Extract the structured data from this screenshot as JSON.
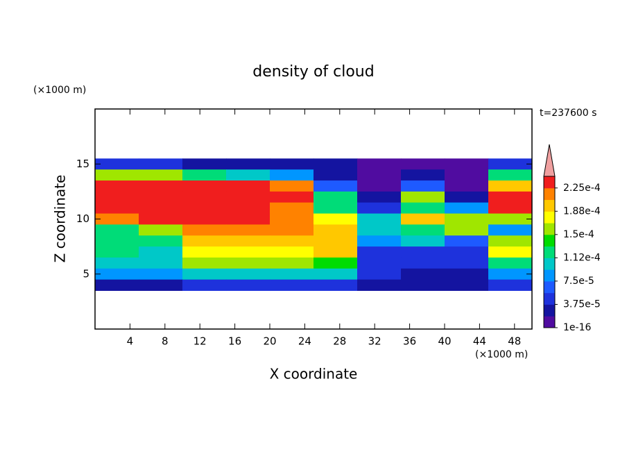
{
  "chart_data": {
    "type": "contour",
    "title": "density of cloud",
    "x_label": "X coordinate",
    "y_label": "Z coordinate",
    "x_unit": "(×1000 m)",
    "y_unit": "(×1000 m)",
    "annotation": "t=237600 s",
    "xlim": [
      0,
      50
    ],
    "ylim": [
      0,
      20
    ],
    "xticks": [
      4,
      8,
      12,
      16,
      20,
      24,
      28,
      32,
      36,
      40,
      44,
      48
    ],
    "yticks": [
      5,
      10,
      15
    ],
    "x_edges": [
      0,
      5,
      10,
      15,
      20,
      25,
      30,
      35,
      40,
      45,
      50
    ],
    "z_edges": [
      15.5,
      14.5,
      13.5,
      12.5,
      11.5,
      10.5,
      9.5,
      8.5,
      7.5,
      6.5,
      5.5,
      4.5,
      3.5
    ],
    "values": [
      [
        5e-05,
        5e-05,
        3e-05,
        3e-05,
        3e-05,
        2e-05,
        1e-05,
        1e-05,
        1e-05,
        5e-05
      ],
      [
        0.00015,
        0.00015,
        0.00012,
        0.0001,
        8e-05,
        3e-05,
        1e-05,
        3e-05,
        1e-05,
        0.00012
      ],
      [
        0.00023,
        0.00023,
        0.00023,
        0.00023,
        0.00022,
        6e-05,
        1e-05,
        6e-05,
        1e-05,
        0.0002
      ],
      [
        0.00023,
        0.00023,
        0.00023,
        0.00023,
        0.00023,
        0.00012,
        2e-05,
        0.00015,
        2e-05,
        0.00023
      ],
      [
        0.00023,
        0.00023,
        0.00023,
        0.00023,
        0.00022,
        0.00012,
        4e-05,
        0.00012,
        8e-05,
        0.00024
      ],
      [
        0.00022,
        0.00023,
        0.00023,
        0.00023,
        0.00022,
        0.00018,
        0.0001,
        0.0002,
        0.00015,
        0.00015
      ],
      [
        0.00012,
        0.00015,
        0.00022,
        0.00022,
        0.00022,
        0.0002,
        0.0001,
        0.00012,
        0.00015,
        9e-05
      ],
      [
        0.00013,
        0.00012,
        0.0002,
        0.0002,
        0.0002,
        0.0002,
        8e-05,
        0.0001,
        6e-05,
        0.00015
      ],
      [
        0.00013,
        0.00011,
        0.00018,
        0.00018,
        0.00018,
        0.00019,
        5e-05,
        5e-05,
        4e-05,
        0.00018
      ],
      [
        0.00011,
        0.0001,
        0.00015,
        0.00015,
        0.00015,
        0.00014,
        5e-05,
        4e-05,
        4e-05,
        0.00013
      ],
      [
        9e-05,
        8e-05,
        0.00011,
        0.00011,
        0.00011,
        0.0001,
        4e-05,
        3e-05,
        3e-05,
        9e-05
      ],
      [
        3e-05,
        3e-05,
        4e-05,
        4e-05,
        4e-05,
        4e-05,
        2e-05,
        2e-05,
        2e-05,
        4e-05
      ]
    ],
    "colorbar": {
      "levels": [
        1e-16,
        1.875e-05,
        3.75e-05,
        5.625e-05,
        7.5e-05,
        9.375e-05,
        0.0001125,
        0.00013125,
        0.00015,
        0.00016875,
        0.0001875,
        0.00020625,
        0.000225,
        0.00024375
      ],
      "colors": [
        "#500ca0",
        "#1414a0",
        "#1e32dc",
        "#1e5aff",
        "#0096ff",
        "#00c8c8",
        "#00dc78",
        "#00dc00",
        "#a0e600",
        "#ffff00",
        "#ffc800",
        "#ff8200",
        "#f01e1e"
      ],
      "over_color": "#f0a0a0",
      "ticks": [
        {
          "value": 1e-16,
          "label": "1e-16"
        },
        {
          "value": 3.75e-05,
          "label": "3.75e-5"
        },
        {
          "value": 7.5e-05,
          "label": "7.5e-5"
        },
        {
          "value": 0.0001125,
          "label": "1.12e-4"
        },
        {
          "value": 0.00015,
          "label": "1.5e-4"
        },
        {
          "value": 0.0001875,
          "label": "1.88e-4"
        },
        {
          "value": 0.000225,
          "label": "2.25e-4"
        }
      ]
    }
  }
}
